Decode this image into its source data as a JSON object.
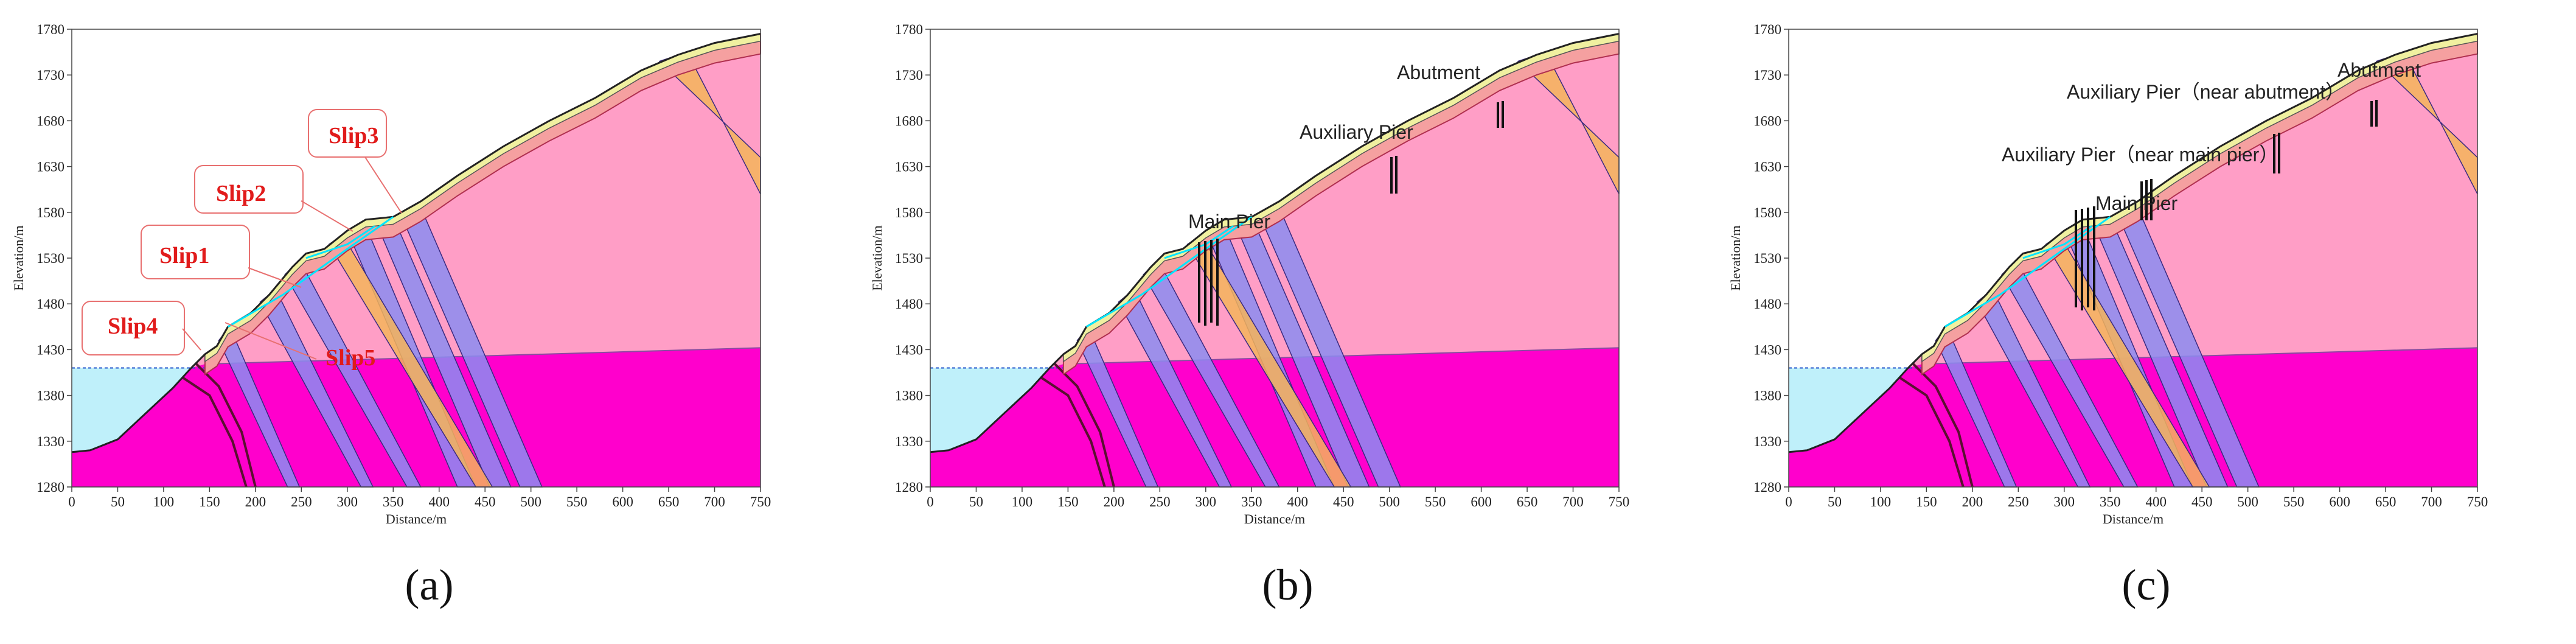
{
  "axes": {
    "x_label": "Distance/m",
    "y_label": "Elevation/m",
    "x_ticks": [
      "0",
      "50",
      "100",
      "150",
      "200",
      "250",
      "300",
      "350",
      "400",
      "450",
      "500",
      "550",
      "600",
      "650",
      "700",
      "750"
    ],
    "y_ticks": [
      "1780",
      "1730",
      "1680",
      "1630",
      "1580",
      "1530",
      "1480",
      "1430",
      "1380",
      "1330",
      "1280"
    ],
    "x_range": [
      0,
      750
    ],
    "y_range": [
      1280,
      1780
    ]
  },
  "colors": {
    "bedrock": "#ff00cc",
    "weathered_rock": "#ff9ec6",
    "water": "#bff0fa",
    "shear_band": "#8c8cf0",
    "orange_band": "#f5b45a",
    "surface_layer": "#f0f0a0",
    "surface_pink": "#f5a0a0",
    "slip_line": "#00e5ff",
    "slip_label": "#e11b1b"
  },
  "panels": [
    {
      "label": "(a)",
      "slip_labels": [
        "Slip1",
        "Slip2",
        "Slip3",
        "Slip4",
        "Slip5"
      ],
      "annotations": []
    },
    {
      "label": "(b)",
      "slip_labels": [],
      "annotations": [
        "Abutment",
        "Auxiliary Pier",
        "Main Pier"
      ]
    },
    {
      "label": "(c)",
      "slip_labels": [],
      "annotations": [
        "Abutment",
        "Auxiliary Pier（near abutment）",
        "Auxiliary Pier（near main pier）",
        "Main Pier"
      ]
    }
  ]
}
